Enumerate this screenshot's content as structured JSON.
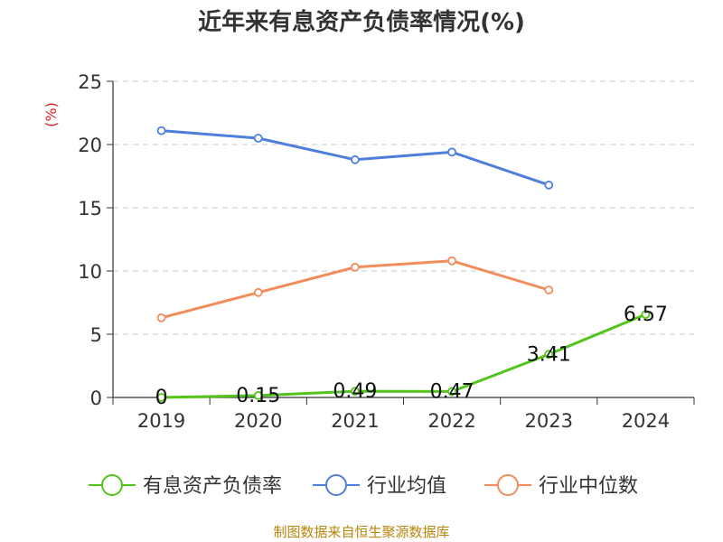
{
  "chart_data": {
    "type": "line",
    "title": "近年来有息资产负债率情况(%)",
    "ylabel": "(%)",
    "categories": [
      "2019",
      "2020",
      "2021",
      "2022",
      "2023",
      "2024"
    ],
    "ylim": [
      0,
      25
    ],
    "yticks": [
      0,
      5,
      10,
      15,
      20,
      25
    ],
    "grid": true,
    "legend_position": "bottom",
    "series": [
      {
        "name": "有息资产负债率",
        "color": "#52c41a",
        "labeled": true,
        "values": [
          0,
          0.15,
          0.49,
          0.47,
          3.41,
          6.57
        ],
        "labels": [
          "0",
          "0.15",
          "0.49",
          "0.47",
          "3.41",
          "6.57"
        ]
      },
      {
        "name": "行业均值",
        "color": "#4f7fdc",
        "labeled": false,
        "values": [
          21.1,
          20.5,
          18.8,
          19.4,
          16.8,
          null
        ]
      },
      {
        "name": "行业中位数",
        "color": "#f28c5a",
        "labeled": false,
        "values": [
          6.3,
          8.3,
          10.3,
          10.8,
          8.5,
          null
        ]
      }
    ]
  },
  "source": "制图数据来自恒生聚源数据库"
}
